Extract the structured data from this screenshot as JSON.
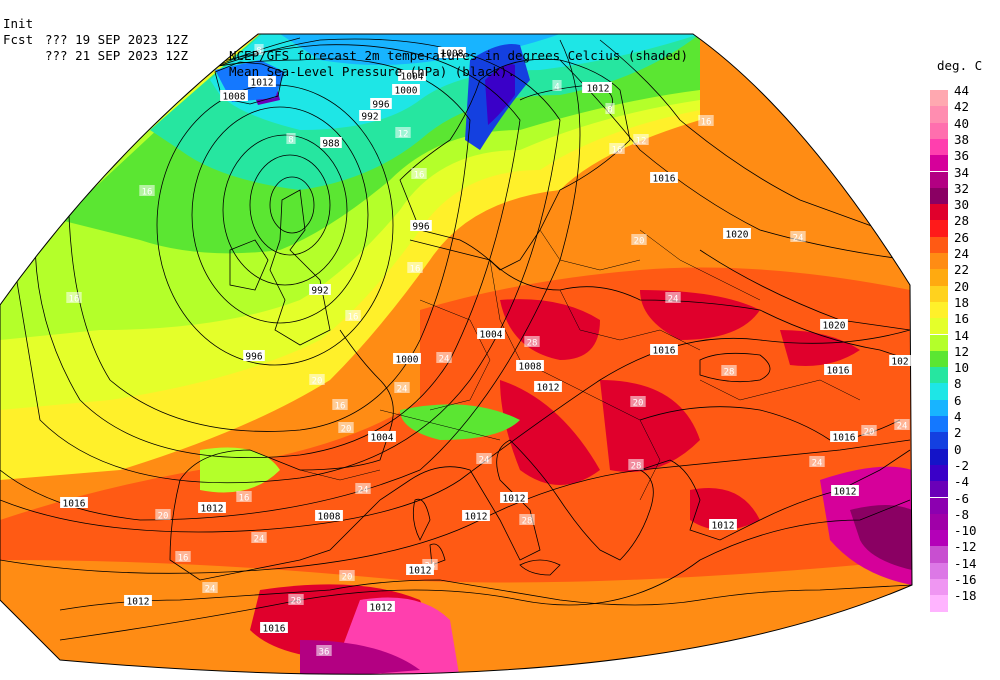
{
  "header": {
    "line1": {
      "prefix": "Init",
      "run": "??? 19 SEP 2023 12Z",
      "title": "NCEP/GFS forecast 2m temperatures in degrees Celcius (shaded)"
    },
    "line2": {
      "prefix": "Fcst",
      "run": "??? 21 SEP 2023 12Z",
      "title": "Mean Sea-Level Pressure (hPa) (black)."
    }
  },
  "legend": {
    "unit": "deg. C",
    "levels": [
      "44",
      "42",
      "40",
      "38",
      "36",
      "34",
      "32",
      "30",
      "28",
      "26",
      "24",
      "22",
      "20",
      "18",
      "16",
      "14",
      "12",
      "10",
      "8",
      "6",
      "4",
      "2",
      "0",
      "-2",
      "-4",
      "-6",
      "-8",
      "-10",
      "-12",
      "-14",
      "-16",
      "-18"
    ],
    "colors": [
      "#ffa8b0",
      "#ff8db0",
      "#ff6fae",
      "#ff3fae",
      "#d6009a",
      "#b30082",
      "#8a0063",
      "#e0002c",
      "#ff1a1a",
      "#ff5a14",
      "#ff8c14",
      "#ffaa10",
      "#ffd21e",
      "#fff02a",
      "#e4ff2a",
      "#b4ff2a",
      "#5be632",
      "#26e6a0",
      "#1ee6e6",
      "#18b4ff",
      "#1478ff",
      "#1440e0",
      "#1414c8",
      "#3a00c8",
      "#6a00b8",
      "#8c00b0",
      "#a000a8",
      "#b400b8",
      "#c84fd0",
      "#dc78e6",
      "#ef96f2",
      "#ffb4ff"
    ]
  },
  "pressure_labels": [
    {
      "text": "1012",
      "kind": "isobar"
    },
    {
      "text": "1008",
      "kind": "isobar"
    },
    {
      "text": "1008",
      "kind": "isobar"
    },
    {
      "text": "1004",
      "kind": "isobar"
    },
    {
      "text": "1000",
      "kind": "isobar"
    },
    {
      "text": "996",
      "kind": "isobar"
    },
    {
      "text": "992",
      "kind": "isobar"
    },
    {
      "text": "988",
      "kind": "isobar"
    },
    {
      "text": "992",
      "kind": "isobar"
    },
    {
      "text": "996",
      "kind": "isobar"
    },
    {
      "text": "996",
      "kind": "isobar"
    },
    {
      "text": "1012",
      "kind": "isobar"
    },
    {
      "text": "1016",
      "kind": "isobar"
    },
    {
      "text": "1020",
      "kind": "isobar"
    },
    {
      "text": "1020",
      "kind": "isobar"
    },
    {
      "text": "1004",
      "kind": "isobar"
    },
    {
      "text": "1000",
      "kind": "isobar"
    },
    {
      "text": "1008",
      "kind": "isobar"
    },
    {
      "text": "1012",
      "kind": "isobar"
    },
    {
      "text": "1016",
      "kind": "isobar"
    },
    {
      "text": "1016",
      "kind": "isobar"
    },
    {
      "text": "1016",
      "kind": "isobar"
    },
    {
      "text": "102",
      "kind": "isobar"
    },
    {
      "text": "1004",
      "kind": "isobar"
    },
    {
      "text": "1016",
      "kind": "isobar"
    },
    {
      "text": "1012",
      "kind": "isobar"
    },
    {
      "text": "1008",
      "kind": "isobar"
    },
    {
      "text": "1012",
      "kind": "isobar"
    },
    {
      "text": "1012",
      "kind": "isobar"
    },
    {
      "text": "1012",
      "kind": "isobar"
    },
    {
      "text": "1012",
      "kind": "isobar"
    },
    {
      "text": "1012",
      "kind": "isobar"
    },
    {
      "text": "1012",
      "kind": "isobar"
    },
    {
      "text": "1016",
      "kind": "isobar"
    },
    {
      "text": "1012",
      "kind": "isobar"
    },
    {
      "text": "1012",
      "kind": "isobar"
    }
  ],
  "temperature_labels": [
    "8",
    "4",
    "8",
    "12",
    "16",
    "8",
    "16",
    "12",
    "20",
    "16",
    "16",
    "16",
    "16",
    "16",
    "20",
    "24",
    "24",
    "24",
    "28",
    "24",
    "28",
    "20",
    "16",
    "20",
    "24",
    "28",
    "28",
    "20",
    "20",
    "24",
    "24",
    "16",
    "20",
    "24",
    "24",
    "16",
    "24",
    "28",
    "20",
    "24",
    "36"
  ]
}
